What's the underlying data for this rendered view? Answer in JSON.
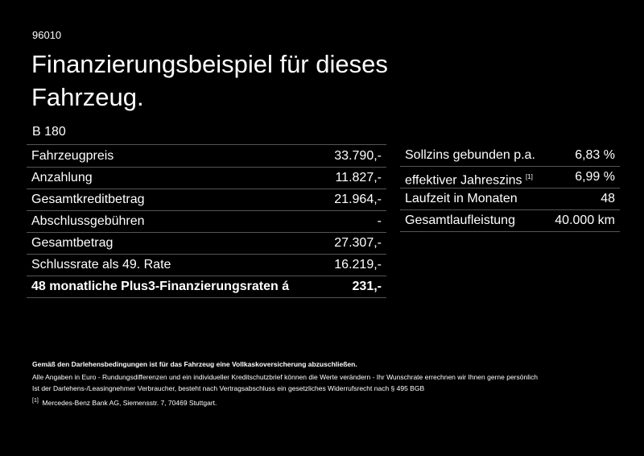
{
  "header": {
    "code": "96010",
    "title_lines": [
      "Finanzierungsbeispiel für dieses",
      "Fahrzeug."
    ],
    "model": "B 180"
  },
  "left_table": {
    "rows": [
      {
        "label": "Fahrzeugpreis",
        "value": "33.790,-"
      },
      {
        "label": "Anzahlung",
        "value": "11.827,-"
      },
      {
        "label": "Gesamtkreditbetrag",
        "value": "21.964,-"
      },
      {
        "label": "Abschlussgebühren",
        "value": "-"
      },
      {
        "label": "Gesamtbetrag",
        "value": "27.307,-"
      },
      {
        "label": "Schlussrate als 49. Rate",
        "value": "16.219,-"
      },
      {
        "label": "48 monatliche Plus3-Finanzierungsraten á",
        "value": "231,-"
      }
    ]
  },
  "right_table": {
    "rows": [
      {
        "label": "Sollzins gebunden p.a.",
        "value": "6,83 %"
      },
      {
        "label": "effektiver Jahreszins",
        "note": "[1]",
        "value": "6,99 %"
      },
      {
        "label": "Laufzeit in Monaten",
        "value": "48"
      },
      {
        "label": "Gesamtlaufleistung",
        "value": "40.000 km"
      }
    ]
  },
  "footer": {
    "bold": "Gemäß den Darlehensbedingungen ist für das Fahrzeug eine Vollkaskoversicherung abzuschließen.",
    "lines": [
      "Alle Angaben in Euro - Rundungsdifferenzen und ein individueller Kreditschutzbrief können die Werte verändern - Ihr Wunschrate errechnen wir Ihnen gerne persönlich",
      "Ist der Darlehens-/Leasingnehmer Verbraucher, besteht nach Vertragsabschluss ein gesetzliches Widerrufsrecht nach § 495 BGB"
    ],
    "note_marker": "[1]",
    "note": "Mercedes-Benz Bank AG, Siemensstr. 7, 70469 Stuttgart."
  }
}
